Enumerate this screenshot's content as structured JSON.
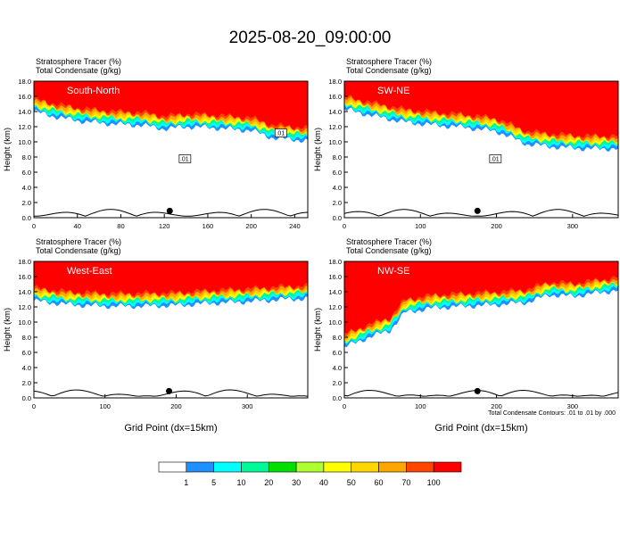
{
  "title": "2025-08-20_09:00:00",
  "colors": {
    "levels": [
      "#ffffff",
      "#1e90ff",
      "#00ffff",
      "#00fa9a",
      "#00e000",
      "#adff2f",
      "#ffff00",
      "#ffd700",
      "#ffa500",
      "#ff4500",
      "#ff0000"
    ],
    "contour": "#000000",
    "terrain": "#000000"
  },
  "chart_data": [
    {
      "type": "heatmap",
      "panel_label": "South-North",
      "subtitle_lines": [
        "Stratosphere Tracer   (%)",
        "Total Condensate   (g/kg)"
      ],
      "xlabel": "",
      "ylabel": "Height (km)",
      "xlim": [
        0,
        252
      ],
      "ylim": [
        0,
        18
      ],
      "xticks": [
        0,
        40,
        80,
        120,
        160,
        200,
        240
      ],
      "yticks": [
        0.0,
        2.0,
        4.0,
        6.0,
        8.0,
        10.0,
        12.0,
        14.0,
        16.0,
        18.0
      ],
      "tracer_lower_edge_km": {
        "x": [
          0,
          20,
          40,
          60,
          80,
          100,
          120,
          140,
          160,
          180,
          200,
          220,
          240,
          252
        ],
        "y": [
          14.9,
          14.2,
          13.7,
          13.4,
          13.2,
          13.1,
          12.6,
          12.9,
          12.8,
          12.6,
          12.4,
          11.4,
          11.2,
          11.0
        ]
      },
      "contour_labels": [
        ".01",
        ".01"
      ],
      "marker_x": 125
    },
    {
      "type": "heatmap",
      "panel_label": "SW-NE",
      "subtitle_lines": [
        "Stratosphere Tracer   (%)",
        "Total Condensate   (g/kg)"
      ],
      "xlabel": "",
      "ylabel": "Height (km)",
      "xlim": [
        0,
        360
      ],
      "ylim": [
        0,
        18
      ],
      "xticks": [
        0,
        100,
        200,
        300
      ],
      "yticks": [
        0.0,
        2.0,
        4.0,
        6.0,
        8.0,
        10.0,
        12.0,
        14.0,
        16.0,
        18.0
      ],
      "tracer_lower_edge_km": {
        "x": [
          0,
          40,
          80,
          120,
          160,
          200,
          240,
          280,
          320,
          360
        ],
        "y": [
          15.2,
          14.3,
          13.5,
          13.1,
          12.8,
          12.3,
          10.6,
          10.2,
          10.0,
          10.0
        ]
      },
      "contour_labels": [
        ".01"
      ],
      "marker_x": 175
    },
    {
      "type": "heatmap",
      "panel_label": "West-East",
      "subtitle_lines": [
        "Stratosphere Tracer   (%)",
        "Total Condensate   (g/kg)"
      ],
      "xlabel": "Grid Point (dx=15km)",
      "ylabel": "Height (km)",
      "xlim": [
        0,
        385
      ],
      "ylim": [
        0,
        18
      ],
      "xticks": [
        0,
        100,
        200,
        300
      ],
      "yticks": [
        0.0,
        2.0,
        4.0,
        6.0,
        8.0,
        10.0,
        12.0,
        14.0,
        16.0,
        18.0
      ],
      "tracer_lower_edge_km": {
        "x": [
          0,
          50,
          100,
          150,
          200,
          250,
          300,
          350,
          385
        ],
        "y": [
          13.7,
          13.2,
          13.0,
          13.0,
          13.1,
          13.4,
          13.6,
          13.9,
          14.0
        ]
      },
      "contour_labels": [],
      "marker_x": 190
    },
    {
      "type": "heatmap",
      "panel_label": "NW-SE",
      "subtitle_lines": [
        "Stratosphere Tracer   (%)",
        "Total Condensate   (g/kg)"
      ],
      "xlabel": "Grid Point (dx=15km)",
      "ylabel": "Height (km)",
      "xlim": [
        0,
        360
      ],
      "ylim": [
        0,
        18
      ],
      "xticks": [
        0,
        100,
        200,
        300
      ],
      "yticks": [
        0.0,
        2.0,
        4.0,
        6.0,
        8.0,
        10.0,
        12.0,
        14.0,
        16.0,
        18.0
      ],
      "tracer_lower_edge_km": {
        "x": [
          0,
          30,
          60,
          80,
          120,
          160,
          200,
          240,
          270,
          300,
          330,
          360
        ],
        "y": [
          7.6,
          8.8,
          9.8,
          12.2,
          12.8,
          13.0,
          13.2,
          13.5,
          14.5,
          14.3,
          14.7,
          15.1
        ]
      },
      "contour_labels": [],
      "marker_x": 175,
      "footnote": "Total Condensate Contours: .01 to .01 by .000"
    }
  ],
  "colorbar": {
    "labels": [
      "1",
      "5",
      "10",
      "20",
      "30",
      "40",
      "50",
      "60",
      "70",
      "100"
    ]
  }
}
